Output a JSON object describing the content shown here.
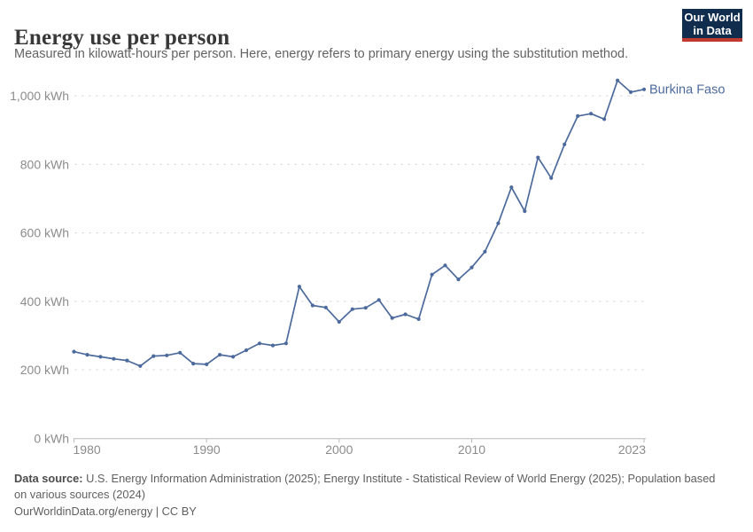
{
  "header": {
    "title": "Energy use per person",
    "subtitle": "Measured in kilowatt-hours per person. Here, energy refers to primary energy using the substitution method.",
    "logo": {
      "line1": "Our World",
      "line2": "in Data",
      "bg_color": "#102D4E",
      "stripe_color": "#C03A32"
    }
  },
  "chart_data": {
    "type": "line",
    "title": "Energy use per person",
    "unit": "kWh",
    "xlabel": "",
    "ylabel": "",
    "xlim": [
      1980,
      2023
    ],
    "ylim": [
      0,
      1000
    ],
    "grid": "dashed-horizontal",
    "legend": "end-of-line-label",
    "x": [
      1980,
      1981,
      1982,
      1983,
      1984,
      1985,
      1986,
      1987,
      1988,
      1989,
      1990,
      1991,
      1992,
      1993,
      1994,
      1995,
      1996,
      1997,
      1998,
      1999,
      2000,
      2001,
      2002,
      2003,
      2004,
      2005,
      2006,
      2007,
      2008,
      2009,
      2010,
      2011,
      2012,
      2013,
      2014,
      2015,
      2016,
      2017,
      2018,
      2019,
      2020,
      2021,
      2022,
      2023
    ],
    "series": [
      {
        "name": "Burkina Faso",
        "color": "#4C6A9C",
        "values": [
          253,
          244,
          238,
          232,
          227,
          211,
          240,
          242,
          250,
          218,
          216,
          244,
          238,
          257,
          277,
          271,
          277,
          443,
          388,
          382,
          340,
          377,
          381,
          404,
          351,
          362,
          348,
          478,
          505,
          464,
          499,
          545,
          628,
          733,
          663,
          820,
          760,
          858,
          941,
          948,
          932,
          1045,
          1011,
          1019
        ]
      }
    ],
    "xticks": [
      {
        "value": 1980,
        "label": "1980"
      },
      {
        "value": 1990,
        "label": "1990"
      },
      {
        "value": 2000,
        "label": "2000"
      },
      {
        "value": 2010,
        "label": "2010"
      },
      {
        "value": 2023,
        "label": "2023"
      }
    ],
    "yticks": [
      {
        "value": 0,
        "label": "0 kWh"
      },
      {
        "value": 200,
        "label": "200 kWh"
      },
      {
        "value": 400,
        "label": "400 kWh"
      },
      {
        "value": 600,
        "label": "600 kWh"
      },
      {
        "value": 800,
        "label": "800 kWh"
      },
      {
        "value": 1000,
        "label": "1,000 kWh"
      }
    ],
    "colors": {
      "line": "#4C6A9C",
      "gridline": "#dcdcdc",
      "axis": "#b8b8b8",
      "tick_label": "#8c8c8c"
    }
  },
  "footer": {
    "source_label": "Data source:",
    "source_text": " U.S. Energy Information Administration (2025); Energy Institute - Statistical Review of World Energy (2025); Population based on various sources (2024)",
    "cc_line": "OurWorldinData.org/energy | CC BY"
  }
}
